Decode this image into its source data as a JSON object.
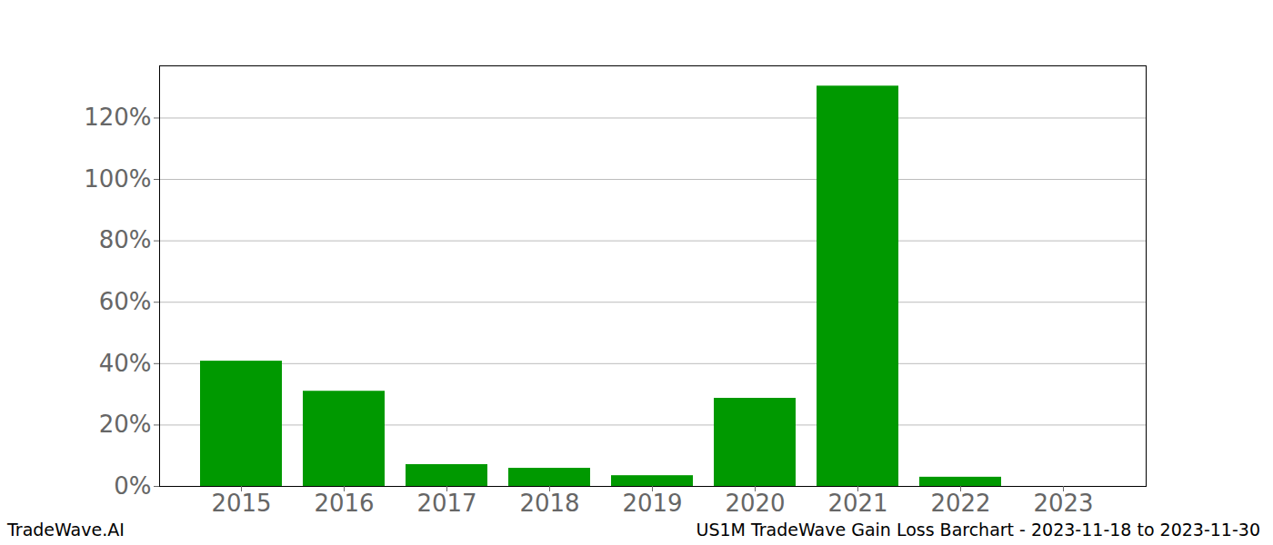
{
  "chart_data": {
    "type": "bar",
    "title": "US1M TradeWave Gain Loss Barchart - 2023-11-18 to 2023-11-30",
    "annotations": [
      "TradeWave.AI"
    ],
    "categories": [
      "2015",
      "2016",
      "2017",
      "2018",
      "2019",
      "2020",
      "2021",
      "2022",
      "2023"
    ],
    "values": [
      40.8,
      31.0,
      7.1,
      5.9,
      3.5,
      28.7,
      130.4,
      3.0,
      0
    ],
    "color": "#009900",
    "ylim": [
      0,
      137
    ],
    "yticks": [
      {
        "value": 0,
        "label": "0%"
      },
      {
        "value": 20,
        "label": "20%"
      },
      {
        "value": 40,
        "label": "40%"
      },
      {
        "value": 60,
        "label": "60%"
      },
      {
        "value": 80,
        "label": "80%"
      },
      {
        "value": 100,
        "label": "100%"
      },
      {
        "value": 120,
        "label": "120%"
      }
    ],
    "grid": true
  }
}
